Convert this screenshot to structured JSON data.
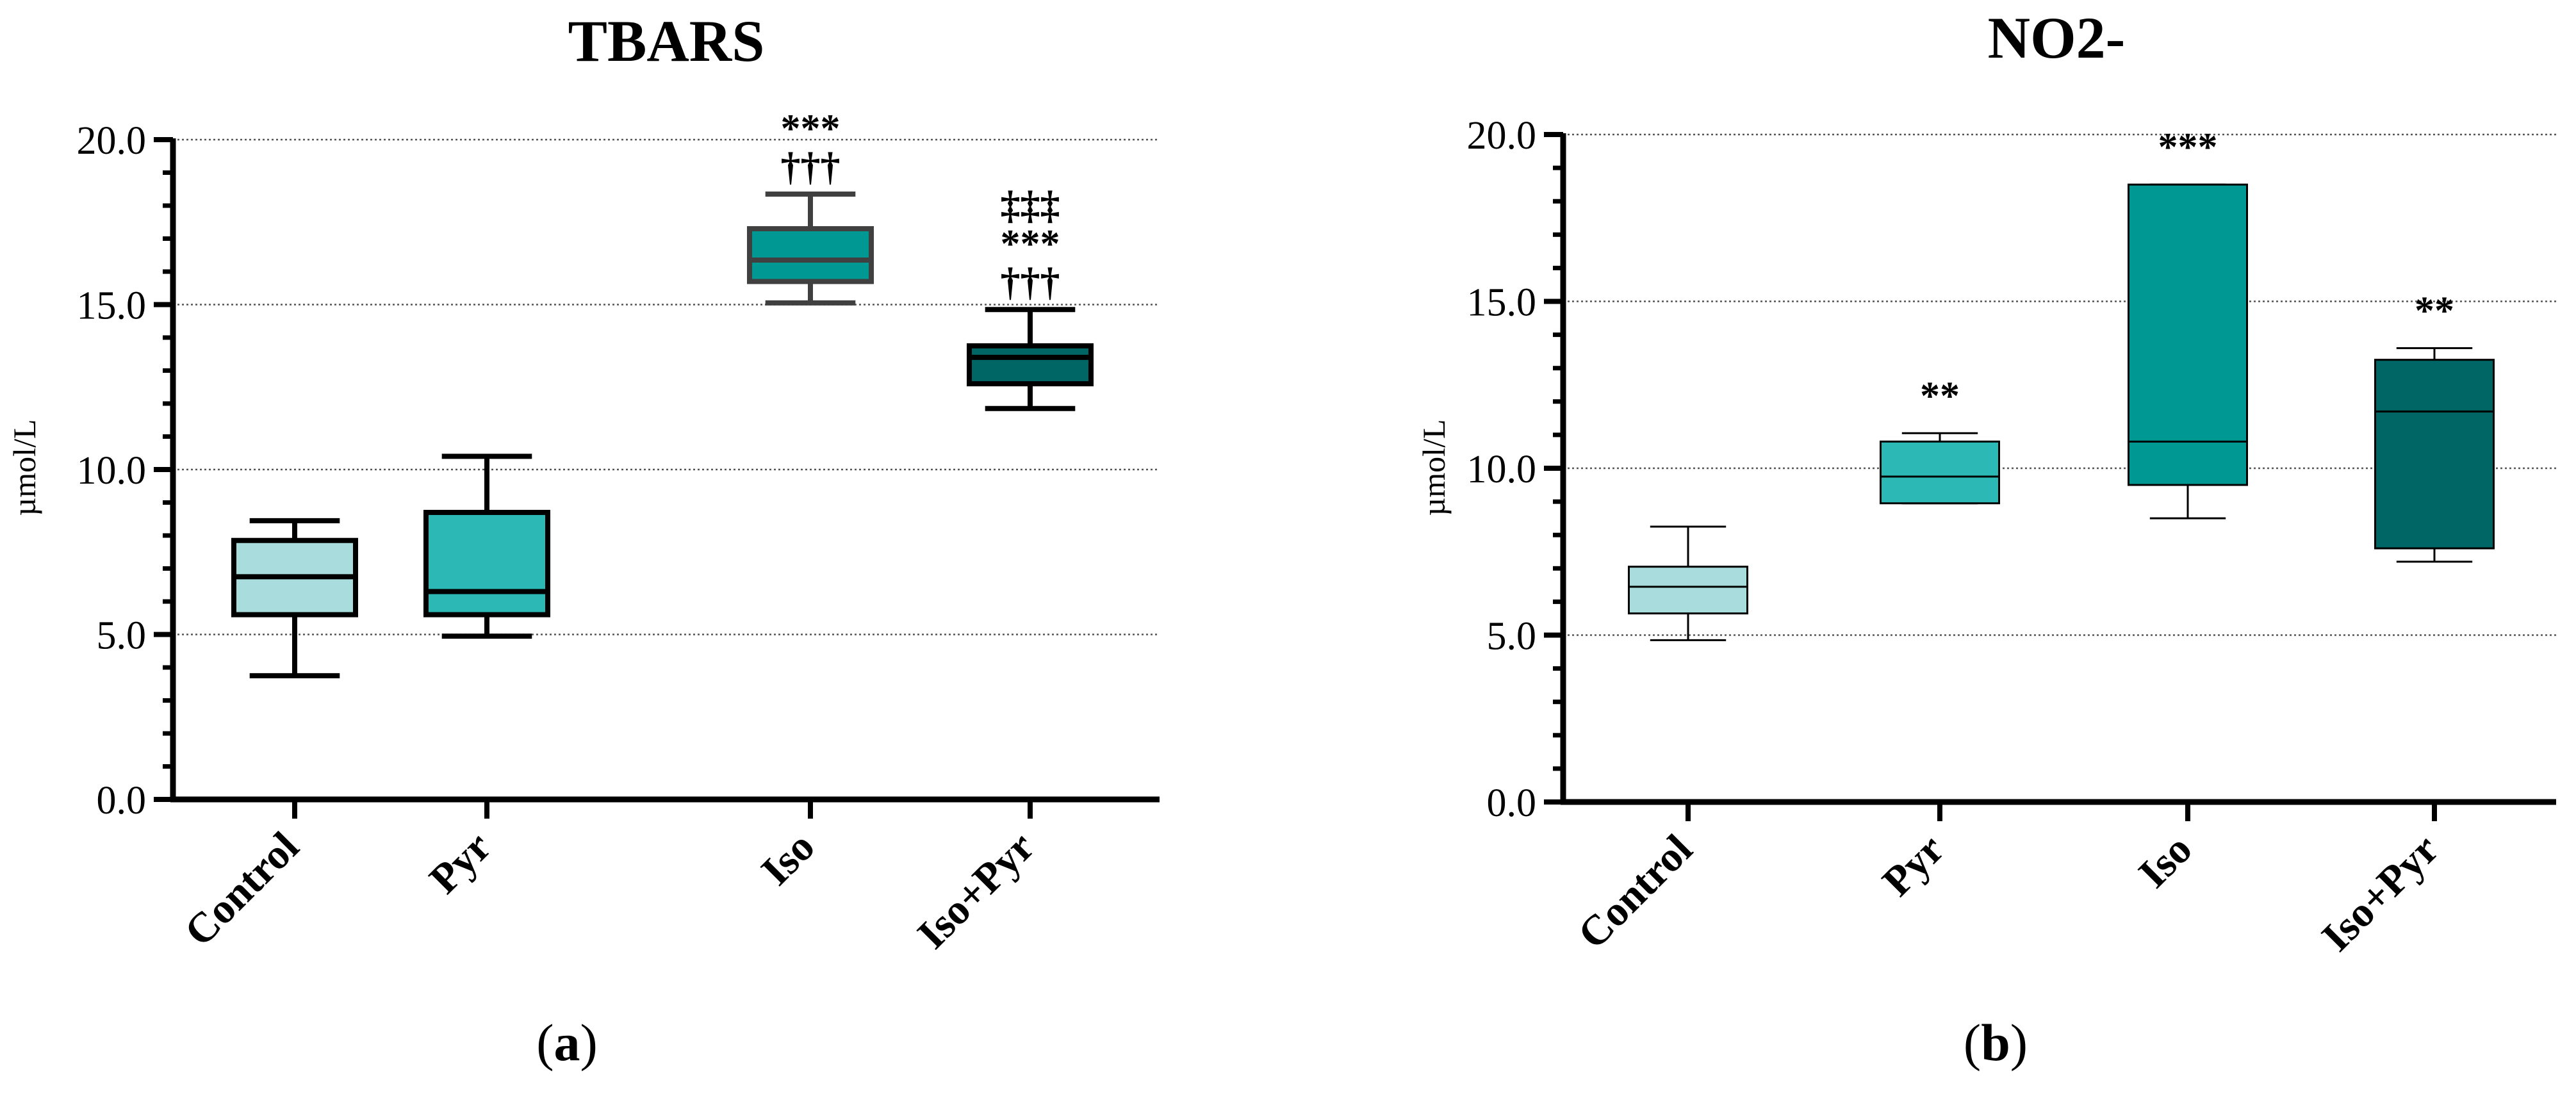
{
  "colors": {
    "Control": "#a8dcdd",
    "Pyr": "#2cb9b6",
    "Iso": "#009893",
    "Iso+Pyr": "#006665",
    "grid": "#555555",
    "axis": "#000000"
  },
  "chart_data": [
    {
      "type": "box",
      "title": "TBARS",
      "ylabel": "µmol/L",
      "xlabel": "",
      "ylim": [
        0,
        20
      ],
      "yticks": [
        "0.0",
        "5.0",
        "10.0",
        "15.0",
        "20.0"
      ],
      "grid": true,
      "panel_label": {
        "open": "(",
        "letter": "a",
        "close": ")"
      },
      "categories": [
        "Control",
        "Pyr",
        "Iso",
        "Iso+Pyr"
      ],
      "boxes": [
        {
          "name": "Control",
          "min": 3.75,
          "q1": 5.6,
          "median": 6.75,
          "q3": 7.85,
          "max": 8.45,
          "annotations": []
        },
        {
          "name": "Pyr",
          "min": 4.95,
          "q1": 5.6,
          "median": 6.3,
          "q3": 8.7,
          "max": 10.4,
          "annotations": []
        },
        {
          "name": "Iso",
          "min": 15.05,
          "q1": 15.7,
          "median": 16.35,
          "q3": 17.3,
          "max": 18.35,
          "annotations": [
            "***",
            "†††"
          ]
        },
        {
          "name": "Iso+Pyr",
          "min": 11.85,
          "q1": 12.6,
          "median": 13.4,
          "q3": 13.75,
          "max": 14.85,
          "annotations": [
            "‡‡‡",
            "***",
            "†††"
          ]
        }
      ]
    },
    {
      "type": "box",
      "title": "NO2-",
      "ylabel": "µmol/L",
      "xlabel": "",
      "ylim": [
        0,
        20
      ],
      "yticks": [
        "0.0",
        "5.0",
        "10.0",
        "15.0",
        "20.0"
      ],
      "grid": true,
      "panel_label": {
        "open": "(",
        "letter": "b",
        "close": ")"
      },
      "categories": [
        "Control",
        "Pyr",
        "Iso",
        "Iso+Pyr"
      ],
      "boxes": [
        {
          "name": "Control",
          "min": 4.85,
          "q1": 5.65,
          "median": 6.45,
          "q3": 7.05,
          "max": 8.25,
          "annotations": []
        },
        {
          "name": "Pyr",
          "min": 8.95,
          "q1": 8.95,
          "median": 9.75,
          "q3": 10.8,
          "max": 11.05,
          "annotations": [
            "**"
          ]
        },
        {
          "name": "Iso",
          "min": 8.5,
          "q1": 9.5,
          "median": 10.8,
          "q3": 18.5,
          "max": 18.5,
          "annotations": [
            "***"
          ]
        },
        {
          "name": "Iso+Pyr",
          "min": 7.2,
          "q1": 7.6,
          "median": 11.7,
          "q3": 13.25,
          "max": 13.6,
          "annotations": [
            "**"
          ]
        }
      ]
    }
  ]
}
